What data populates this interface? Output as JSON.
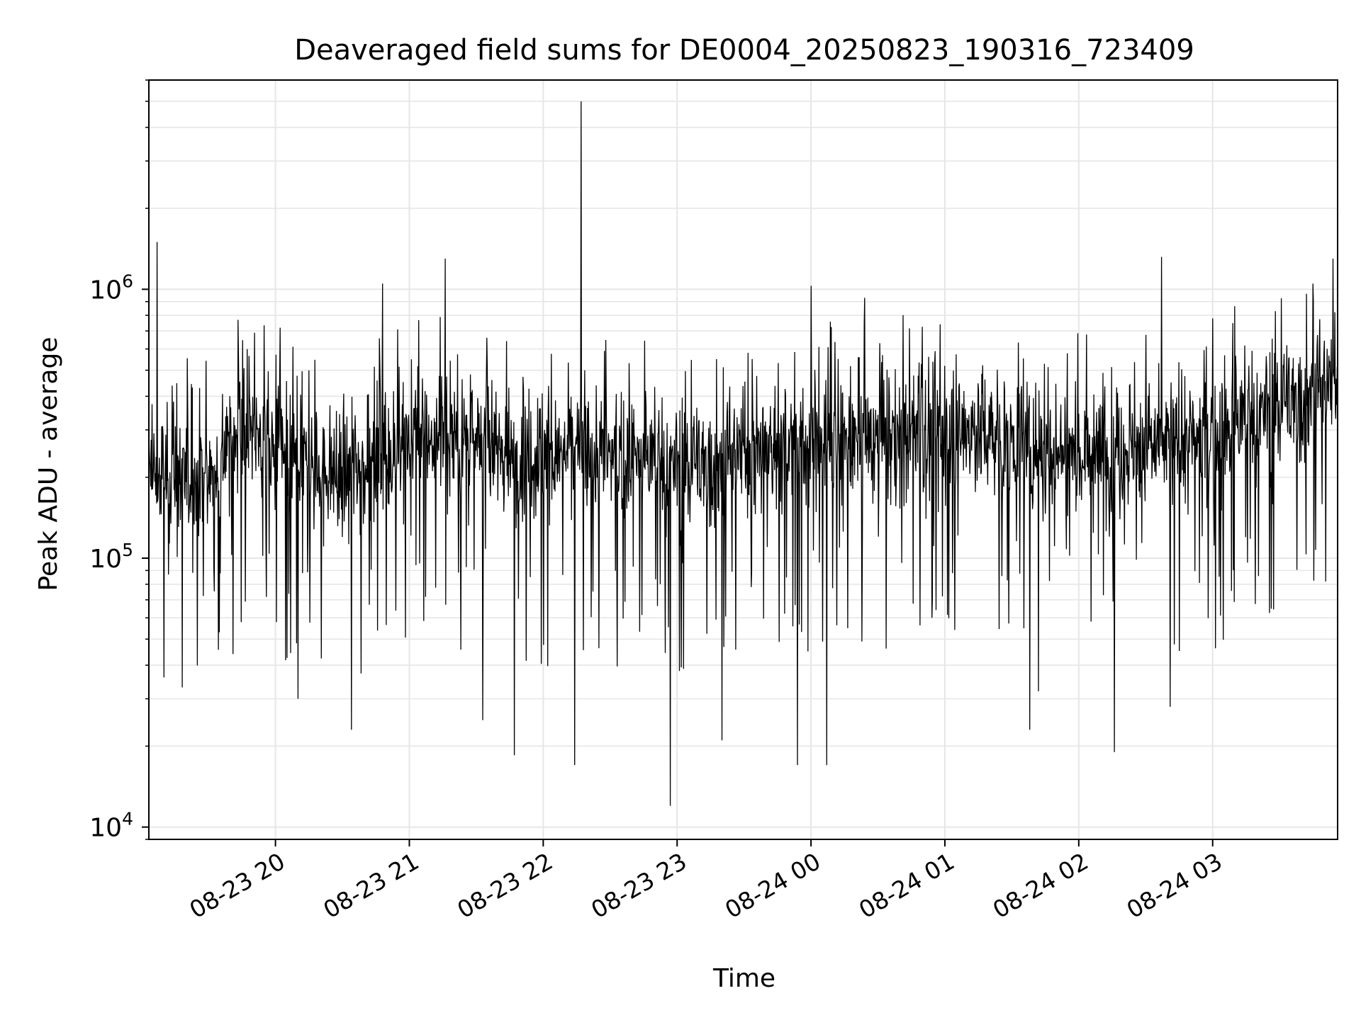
{
  "chart_data": {
    "type": "line",
    "title": "Deaveraged field sums for DE0004_20250823_190316_723409",
    "xlabel": "Time",
    "ylabel": "Peak ADU - average",
    "x_range": [
      "2025-08-23 19:03:16",
      "2025-08-24 03:56:00"
    ],
    "y_scale": "log",
    "ylim": [
      9000,
      6000000
    ],
    "grid": true,
    "x_ticks": [
      "08-23 20",
      "08-23 21",
      "08-23 22",
      "08-23 23",
      "08-24 00",
      "08-24 01",
      "08-24 02",
      "08-24 03"
    ],
    "y_ticks": [
      {
        "value": 10000,
        "base": "10",
        "exp": "4"
      },
      {
        "value": 100000,
        "base": "10",
        "exp": "5"
      },
      {
        "value": 1000000,
        "base": "10",
        "exp": "6"
      }
    ],
    "series": [
      {
        "color": "#000000",
        "x_start": "2025-08-23 19:03:16",
        "x_end": "2025-08-24 03:56:00",
        "baseline": [
          [
            "2025-08-23 19:03",
            200000
          ],
          [
            "2025-08-23 19:30",
            200000
          ],
          [
            "2025-08-23 19:45",
            320000
          ],
          [
            "2025-08-23 20:00",
            240000
          ],
          [
            "2025-08-23 20:30",
            200000
          ],
          [
            "2025-08-23 20:50",
            260000
          ],
          [
            "2025-08-23 21:15",
            290000
          ],
          [
            "2025-08-23 21:45",
            240000
          ],
          [
            "2025-08-23 22:20",
            250000
          ],
          [
            "2025-08-23 23:00",
            220000
          ],
          [
            "2025-08-23 23:45",
            260000
          ],
          [
            "2025-08-24 00:30",
            280000
          ],
          [
            "2025-08-24 01:15",
            300000
          ],
          [
            "2025-08-24 01:50",
            250000
          ],
          [
            "2025-08-24 02:30",
            260000
          ],
          [
            "2025-08-24 03:00",
            280000
          ],
          [
            "2025-08-24 03:30",
            380000
          ],
          [
            "2025-08-24 03:56",
            450000
          ]
        ],
        "spikes": [
          [
            "2025-08-23 19:07",
            1500000
          ],
          [
            "2025-08-23 19:10",
            36000
          ],
          [
            "2025-08-23 19:41",
            44000
          ],
          [
            "2025-08-23 20:02",
            720000
          ],
          [
            "2025-08-23 20:10",
            30000
          ],
          [
            "2025-08-23 20:34",
            23000
          ],
          [
            "2025-08-23 20:48",
            1050000
          ],
          [
            "2025-08-23 21:16",
            1300000
          ],
          [
            "2025-08-23 21:33",
            25000
          ],
          [
            "2025-08-23 21:47",
            18500
          ],
          [
            "2025-08-23 22:14",
            17000
          ],
          [
            "2025-08-23 22:17",
            5000000
          ],
          [
            "2025-08-23 22:57",
            12000
          ],
          [
            "2025-08-23 23:20",
            21000
          ],
          [
            "2025-08-23 23:54",
            17000
          ],
          [
            "2025-08-24 00:00",
            1030000
          ],
          [
            "2025-08-24 00:07",
            17000
          ],
          [
            "2025-08-24 00:24",
            930000
          ],
          [
            "2025-08-24 01:38",
            23000
          ],
          [
            "2025-08-24 01:42",
            32000
          ],
          [
            "2025-08-24 02:16",
            19000
          ],
          [
            "2025-08-24 02:37",
            1320000
          ],
          [
            "2025-08-24 02:41",
            28000
          ],
          [
            "2025-08-24 03:45",
            1050000
          ],
          [
            "2025-08-24 03:54",
            1300000
          ]
        ]
      }
    ]
  }
}
